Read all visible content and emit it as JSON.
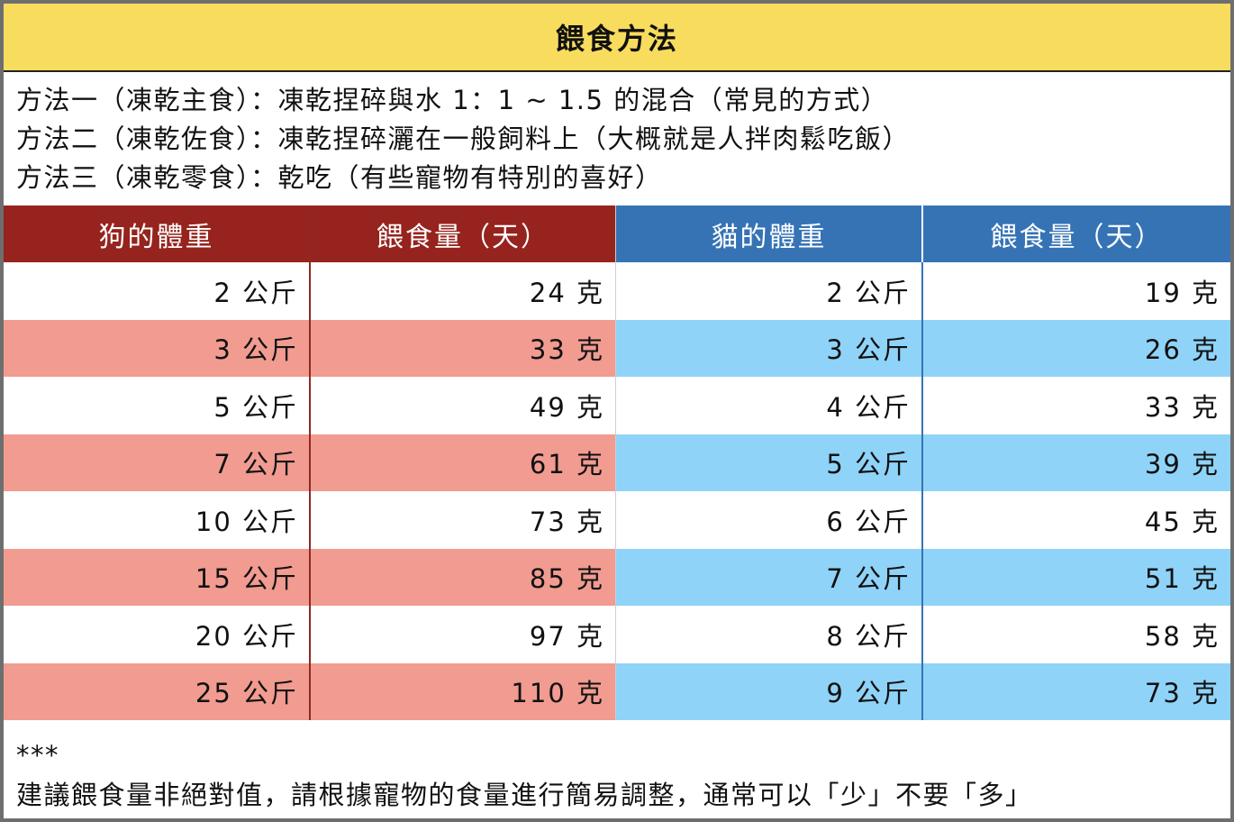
{
  "title": "餵食方法",
  "methods": [
    "方法一（凍乾主食）：凍乾捏碎與水 1：1 ~ 1.5 的混合（常見的方式）",
    "方法二（凍乾佐食）：凍乾捏碎灑在一般飼料上（大概就是人拌肉鬆吃飯）",
    "方法三（凍乾零食）：乾吃（有些寵物有特別的喜好）"
  ],
  "colors": {
    "title_bg": "#f8dc5e",
    "dog_header": "#96231d",
    "cat_header": "#3673b5",
    "dog_row_alt": "#f19b91",
    "cat_row_alt": "#8fd3f8"
  },
  "table": {
    "headers": [
      "狗的體重",
      "餵食量（天）",
      "貓的體重",
      "餵食量（天）"
    ],
    "rows": [
      [
        "2 公斤",
        "24 克",
        "2 公斤",
        "19 克"
      ],
      [
        "3 公斤",
        "33 克",
        "3 公斤",
        "26 克"
      ],
      [
        "5 公斤",
        "49 克",
        "4 公斤",
        "33 克"
      ],
      [
        "7 公斤",
        "61 克",
        "5 公斤",
        "39 克"
      ],
      [
        "10 公斤",
        "73 克",
        "6 公斤",
        "45 克"
      ],
      [
        "15 公斤",
        "85 克",
        "7 公斤",
        "51 克"
      ],
      [
        "20 公斤",
        "97 克",
        "8 公斤",
        "58 克"
      ],
      [
        "25 公斤",
        "110 克",
        "9 公斤",
        "73 克"
      ]
    ]
  },
  "footer": {
    "marker": "***",
    "note": "建議餵食量非絕對值，請根據寵物的食量進行簡易調整，通常可以「少」不要「多」"
  }
}
